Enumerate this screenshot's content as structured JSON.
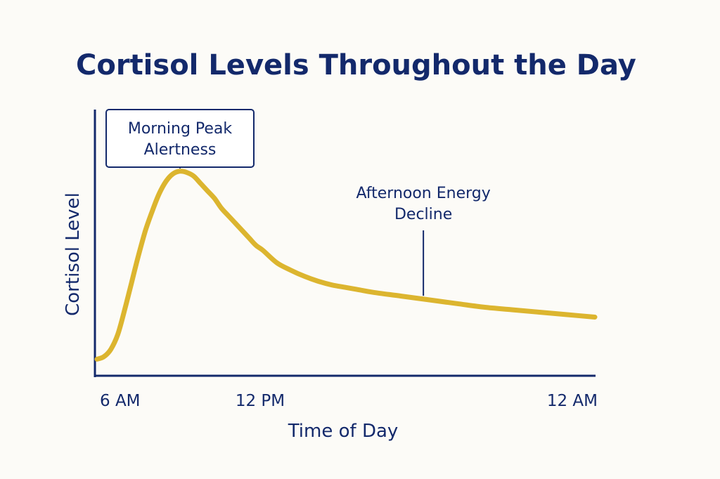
{
  "chart_data": {
    "type": "line",
    "title": "Cortisol Levels Throughout the Day",
    "xlabel": "Time of Day",
    "ylabel": "Cortisol Level",
    "x_ticks": [
      "6 AM",
      "12 PM",
      "12 AM"
    ],
    "x_tick_hours": [
      0,
      6,
      18
    ],
    "xlim": [
      0,
      18
    ],
    "ylim": [
      0,
      100
    ],
    "grid": false,
    "series": [
      {
        "color": "#dcb52f",
        "x": [
          0,
          0.25,
          0.5,
          0.75,
          1,
          1.25,
          1.5,
          1.75,
          2,
          2.25,
          2.5,
          2.75,
          3,
          3.25,
          3.5,
          3.75,
          4,
          4.25,
          4.5,
          4.75,
          5,
          5.25,
          5.5,
          5.75,
          6,
          6.5,
          7,
          7.5,
          8,
          8.5,
          9,
          9.5,
          10,
          11,
          12,
          13,
          14,
          15,
          16,
          17,
          18
        ],
        "values": [
          7,
          8,
          11,
          17,
          27,
          38,
          49,
          59,
          67,
          74,
          79,
          82,
          83,
          82.5,
          81,
          78,
          75,
          72,
          68,
          65,
          62,
          59,
          56,
          53,
          51,
          46,
          43,
          40.5,
          38.5,
          37,
          36,
          35,
          34,
          32.5,
          31,
          29.5,
          28,
          27,
          26,
          25,
          24
        ]
      }
    ],
    "annotations": [
      {
        "lines": [
          "Morning Peak",
          "Alertness"
        ],
        "x": 3,
        "y": 83,
        "style": "boxed"
      },
      {
        "lines": [
          "Afternoon Energy",
          "Decline"
        ],
        "x": 11.8,
        "y": 31.5,
        "style": "plain"
      }
    ]
  }
}
